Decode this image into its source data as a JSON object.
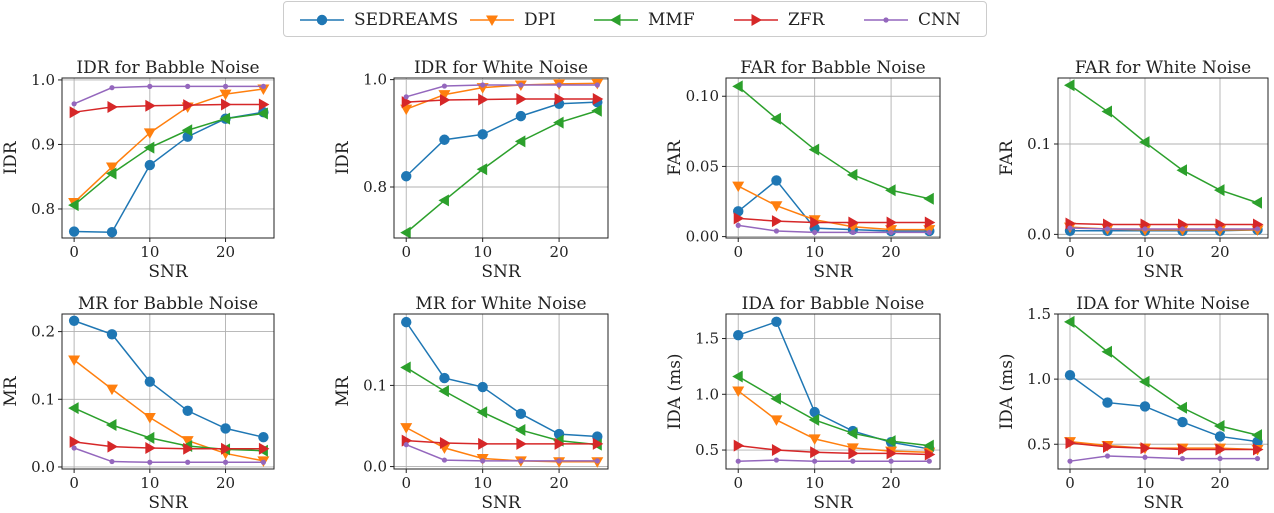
{
  "legend": [
    {
      "name": "SEDREAMS",
      "color": "#1f77b4",
      "marker": "circle"
    },
    {
      "name": "DPI",
      "color": "#ff7f0e",
      "marker": "triangle-down"
    },
    {
      "name": "MMF",
      "color": "#2ca02c",
      "marker": "triangle-left"
    },
    {
      "name": "ZFR",
      "color": "#d62728",
      "marker": "triangle-right"
    },
    {
      "name": "CNN",
      "color": "#9467bd",
      "marker": "dot"
    }
  ],
  "chart_data": [
    {
      "type": "line",
      "title": "IDR for Babble Noise",
      "xlabel": "SNR",
      "ylabel": "IDR",
      "x": [
        0,
        5,
        10,
        15,
        20,
        25
      ],
      "xlim": [
        -1.6,
        26.4
      ],
      "ylim": [
        0.755,
        1.003
      ],
      "xticks": [
        0,
        10,
        20
      ],
      "yticks": [
        0.8,
        0.9,
        1.0
      ],
      "ytick_labels": [
        "0.8",
        "0.9",
        "1.0"
      ],
      "series": [
        {
          "name": "SEDREAMS",
          "values": [
            0.765,
            0.764,
            0.868,
            0.912,
            0.94,
            0.95
          ]
        },
        {
          "name": "DPI",
          "values": [
            0.81,
            0.865,
            0.918,
            0.958,
            0.978,
            0.986
          ]
        },
        {
          "name": "MMF",
          "values": [
            0.806,
            0.855,
            0.895,
            0.922,
            0.94,
            0.948
          ]
        },
        {
          "name": "ZFR",
          "values": [
            0.95,
            0.958,
            0.96,
            0.961,
            0.962,
            0.962
          ]
        },
        {
          "name": "CNN",
          "values": [
            0.963,
            0.988,
            0.99,
            0.99,
            0.99,
            0.99
          ]
        }
      ]
    },
    {
      "type": "line",
      "title": "IDR for White Noise",
      "xlabel": "SNR",
      "ylabel": "IDR",
      "x": [
        0,
        5,
        10,
        15,
        20,
        25
      ],
      "xlim": [
        -1.6,
        26.4
      ],
      "ylim": [
        0.705,
        1.003
      ],
      "xticks": [
        0,
        10,
        20
      ],
      "yticks": [
        0.8,
        1.0
      ],
      "ytick_labels": [
        "0.8",
        "1.0"
      ],
      "series": [
        {
          "name": "SEDREAMS",
          "values": [
            0.82,
            0.888,
            0.898,
            0.932,
            0.955,
            0.958
          ]
        },
        {
          "name": "DPI",
          "values": [
            0.945,
            0.972,
            0.985,
            0.99,
            0.992,
            0.993
          ]
        },
        {
          "name": "MMF",
          "values": [
            0.715,
            0.775,
            0.833,
            0.885,
            0.92,
            0.942
          ]
        },
        {
          "name": "ZFR",
          "values": [
            0.958,
            0.962,
            0.963,
            0.964,
            0.964,
            0.964
          ]
        },
        {
          "name": "CNN",
          "values": [
            0.968,
            0.988,
            0.99,
            0.99,
            0.99,
            0.99
          ]
        }
      ]
    },
    {
      "type": "line",
      "title": "FAR for Babble Noise",
      "xlabel": "SNR",
      "ylabel": "FAR",
      "x": [
        0,
        5,
        10,
        15,
        20,
        25
      ],
      "xlim": [
        -1.6,
        26.4
      ],
      "ylim": [
        -0.001,
        0.113
      ],
      "xticks": [
        0,
        10,
        20
      ],
      "yticks": [
        0.0,
        0.05,
        0.1
      ],
      "ytick_labels": [
        "0.00",
        "0.05",
        "0.10"
      ],
      "series": [
        {
          "name": "SEDREAMS",
          "values": [
            0.018,
            0.04,
            0.006,
            0.005,
            0.004,
            0.004
          ]
        },
        {
          "name": "DPI",
          "values": [
            0.036,
            0.022,
            0.012,
            0.007,
            0.005,
            0.005
          ]
        },
        {
          "name": "MMF",
          "values": [
            0.107,
            0.084,
            0.062,
            0.044,
            0.033,
            0.027
          ]
        },
        {
          "name": "ZFR",
          "values": [
            0.013,
            0.011,
            0.01,
            0.01,
            0.01,
            0.01
          ]
        },
        {
          "name": "CNN",
          "values": [
            0.008,
            0.004,
            0.003,
            0.003,
            0.003,
            0.003
          ]
        }
      ]
    },
    {
      "type": "line",
      "title": "FAR for White Noise",
      "xlabel": "SNR",
      "ylabel": "FAR",
      "x": [
        0,
        5,
        10,
        15,
        20,
        25
      ],
      "xlim": [
        -1.6,
        26.4
      ],
      "ylim": [
        -0.004,
        0.173
      ],
      "xticks": [
        0,
        10,
        20
      ],
      "yticks": [
        0.0,
        0.1
      ],
      "ytick_labels": [
        "0.0",
        "0.1"
      ],
      "series": [
        {
          "name": "SEDREAMS",
          "values": [
            0.004,
            0.004,
            0.004,
            0.004,
            0.004,
            0.005
          ]
        },
        {
          "name": "DPI",
          "values": [
            0.008,
            0.006,
            0.005,
            0.005,
            0.005,
            0.005
          ]
        },
        {
          "name": "MMF",
          "values": [
            0.165,
            0.136,
            0.102,
            0.071,
            0.049,
            0.035
          ]
        },
        {
          "name": "ZFR",
          "values": [
            0.012,
            0.011,
            0.011,
            0.011,
            0.011,
            0.011
          ]
        },
        {
          "name": "CNN",
          "values": [
            0.007,
            0.006,
            0.006,
            0.006,
            0.006,
            0.006
          ]
        }
      ]
    },
    {
      "type": "line",
      "title": "MR for Babble Noise",
      "xlabel": "SNR",
      "ylabel": "MR",
      "x": [
        0,
        5,
        10,
        15,
        20,
        25
      ],
      "xlim": [
        -1.6,
        26.4
      ],
      "ylim": [
        -0.003,
        0.226
      ],
      "xticks": [
        0,
        10,
        20
      ],
      "yticks": [
        0.0,
        0.1,
        0.2
      ],
      "ytick_labels": [
        "0.0",
        "0.1",
        "0.2"
      ],
      "series": [
        {
          "name": "SEDREAMS",
          "values": [
            0.216,
            0.196,
            0.126,
            0.083,
            0.057,
            0.044
          ]
        },
        {
          "name": "DPI",
          "values": [
            0.158,
            0.115,
            0.073,
            0.039,
            0.02,
            0.009
          ]
        },
        {
          "name": "MMF",
          "values": [
            0.087,
            0.062,
            0.043,
            0.031,
            0.026,
            0.024
          ]
        },
        {
          "name": "ZFR",
          "values": [
            0.037,
            0.03,
            0.028,
            0.027,
            0.027,
            0.027
          ]
        },
        {
          "name": "CNN",
          "values": [
            0.028,
            0.008,
            0.007,
            0.007,
            0.007,
            0.007
          ]
        }
      ]
    },
    {
      "type": "line",
      "title": "MR for White Noise",
      "xlabel": "SNR",
      "ylabel": "MR",
      "x": [
        0,
        5,
        10,
        15,
        20,
        25
      ],
      "xlim": [
        -1.6,
        26.4
      ],
      "ylim": [
        -0.003,
        0.188
      ],
      "xticks": [
        0,
        10,
        20
      ],
      "yticks": [
        0.0,
        0.1
      ],
      "ytick_labels": [
        "0.0",
        "0.1"
      ],
      "series": [
        {
          "name": "SEDREAMS",
          "values": [
            0.178,
            0.109,
            0.098,
            0.065,
            0.04,
            0.037
          ]
        },
        {
          "name": "DPI",
          "values": [
            0.048,
            0.023,
            0.01,
            0.007,
            0.006,
            0.006
          ]
        },
        {
          "name": "MMF",
          "values": [
            0.122,
            0.093,
            0.067,
            0.045,
            0.032,
            0.027
          ]
        },
        {
          "name": "ZFR",
          "values": [
            0.032,
            0.029,
            0.028,
            0.028,
            0.028,
            0.028
          ]
        },
        {
          "name": "CNN",
          "values": [
            0.027,
            0.008,
            0.007,
            0.007,
            0.007,
            0.007
          ]
        }
      ]
    },
    {
      "type": "line",
      "title": "IDA for Babble Noise",
      "xlabel": "SNR",
      "ylabel": "IDA (ms)",
      "x": [
        0,
        5,
        10,
        15,
        20,
        25
      ],
      "xlim": [
        -1.6,
        26.4
      ],
      "ylim": [
        0.33,
        1.72
      ],
      "xticks": [
        0,
        10,
        20
      ],
      "yticks": [
        0.5,
        1.0,
        1.5
      ],
      "ytick_labels": [
        "0.5",
        "1.0",
        "1.5"
      ],
      "series": [
        {
          "name": "SEDREAMS",
          "values": [
            1.53,
            1.65,
            0.84,
            0.67,
            0.57,
            0.51
          ]
        },
        {
          "name": "DPI",
          "values": [
            1.03,
            0.77,
            0.6,
            0.52,
            0.49,
            0.48
          ]
        },
        {
          "name": "MMF",
          "values": [
            1.16,
            0.96,
            0.77,
            0.65,
            0.58,
            0.54
          ]
        },
        {
          "name": "ZFR",
          "values": [
            0.54,
            0.5,
            0.48,
            0.47,
            0.47,
            0.46
          ]
        },
        {
          "name": "CNN",
          "values": [
            0.4,
            0.41,
            0.4,
            0.4,
            0.4,
            0.4
          ]
        }
      ]
    },
    {
      "type": "line",
      "title": "IDA for White Noise",
      "xlabel": "SNR",
      "ylabel": "IDA (ms)",
      "x": [
        0,
        5,
        10,
        15,
        20,
        25
      ],
      "xlim": [
        -1.6,
        26.4
      ],
      "ylim": [
        0.31,
        1.5
      ],
      "xticks": [
        0,
        10,
        20
      ],
      "yticks": [
        0.5,
        1.0,
        1.5
      ],
      "ytick_labels": [
        "0.5",
        "1.0",
        "1.5"
      ],
      "series": [
        {
          "name": "SEDREAMS",
          "values": [
            1.03,
            0.82,
            0.79,
            0.67,
            0.56,
            0.52
          ]
        },
        {
          "name": "DPI",
          "values": [
            0.52,
            0.49,
            0.47,
            0.47,
            0.47,
            0.46
          ]
        },
        {
          "name": "MMF",
          "values": [
            1.44,
            1.21,
            0.98,
            0.78,
            0.64,
            0.57
          ]
        },
        {
          "name": "ZFR",
          "values": [
            0.51,
            0.48,
            0.47,
            0.46,
            0.46,
            0.46
          ]
        },
        {
          "name": "CNN",
          "values": [
            0.37,
            0.41,
            0.4,
            0.39,
            0.39,
            0.39
          ]
        }
      ]
    }
  ]
}
